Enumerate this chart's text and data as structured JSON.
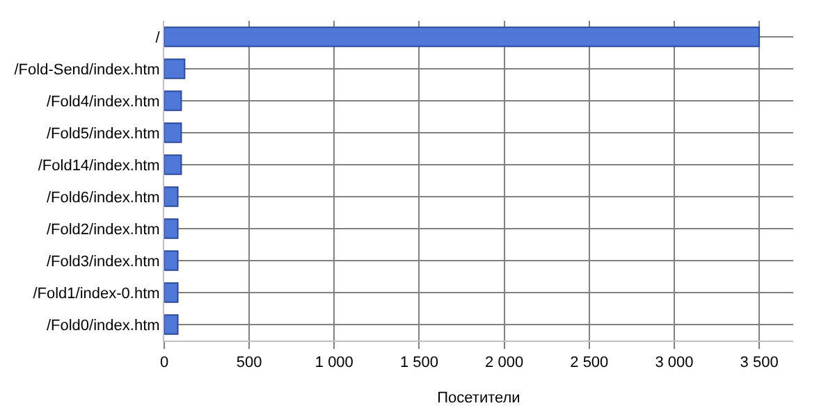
{
  "chart_data": {
    "type": "bar",
    "orientation": "horizontal",
    "xlabel": "Посетители",
    "categories": [
      "/",
      "/Fold-Send/index.htm",
      "/Fold4/index.htm",
      "/Fold5/index.htm",
      "/Fold14/index.htm",
      "/Fold6/index.htm",
      "/Fold2/index.htm",
      "/Fold3/index.htm",
      "/Fold1/index-0.htm",
      "/Fold0/index.htm"
    ],
    "values": [
      3500,
      120,
      100,
      100,
      100,
      80,
      80,
      80,
      80,
      80
    ],
    "color": "#4f78d8",
    "xlim": [
      0,
      3700
    ],
    "xticks": [
      0,
      500,
      {
        "value": 1000,
        "label": "1 000"
      },
      {
        "value": 1500,
        "label": "1 500"
      },
      {
        "value": 2000,
        "label": "2 000"
      },
      {
        "value": 2500,
        "label": "2 500"
      },
      {
        "value": 3000,
        "label": "3 000"
      },
      {
        "value": 3500,
        "label": "3 500"
      }
    ],
    "grid": true
  }
}
